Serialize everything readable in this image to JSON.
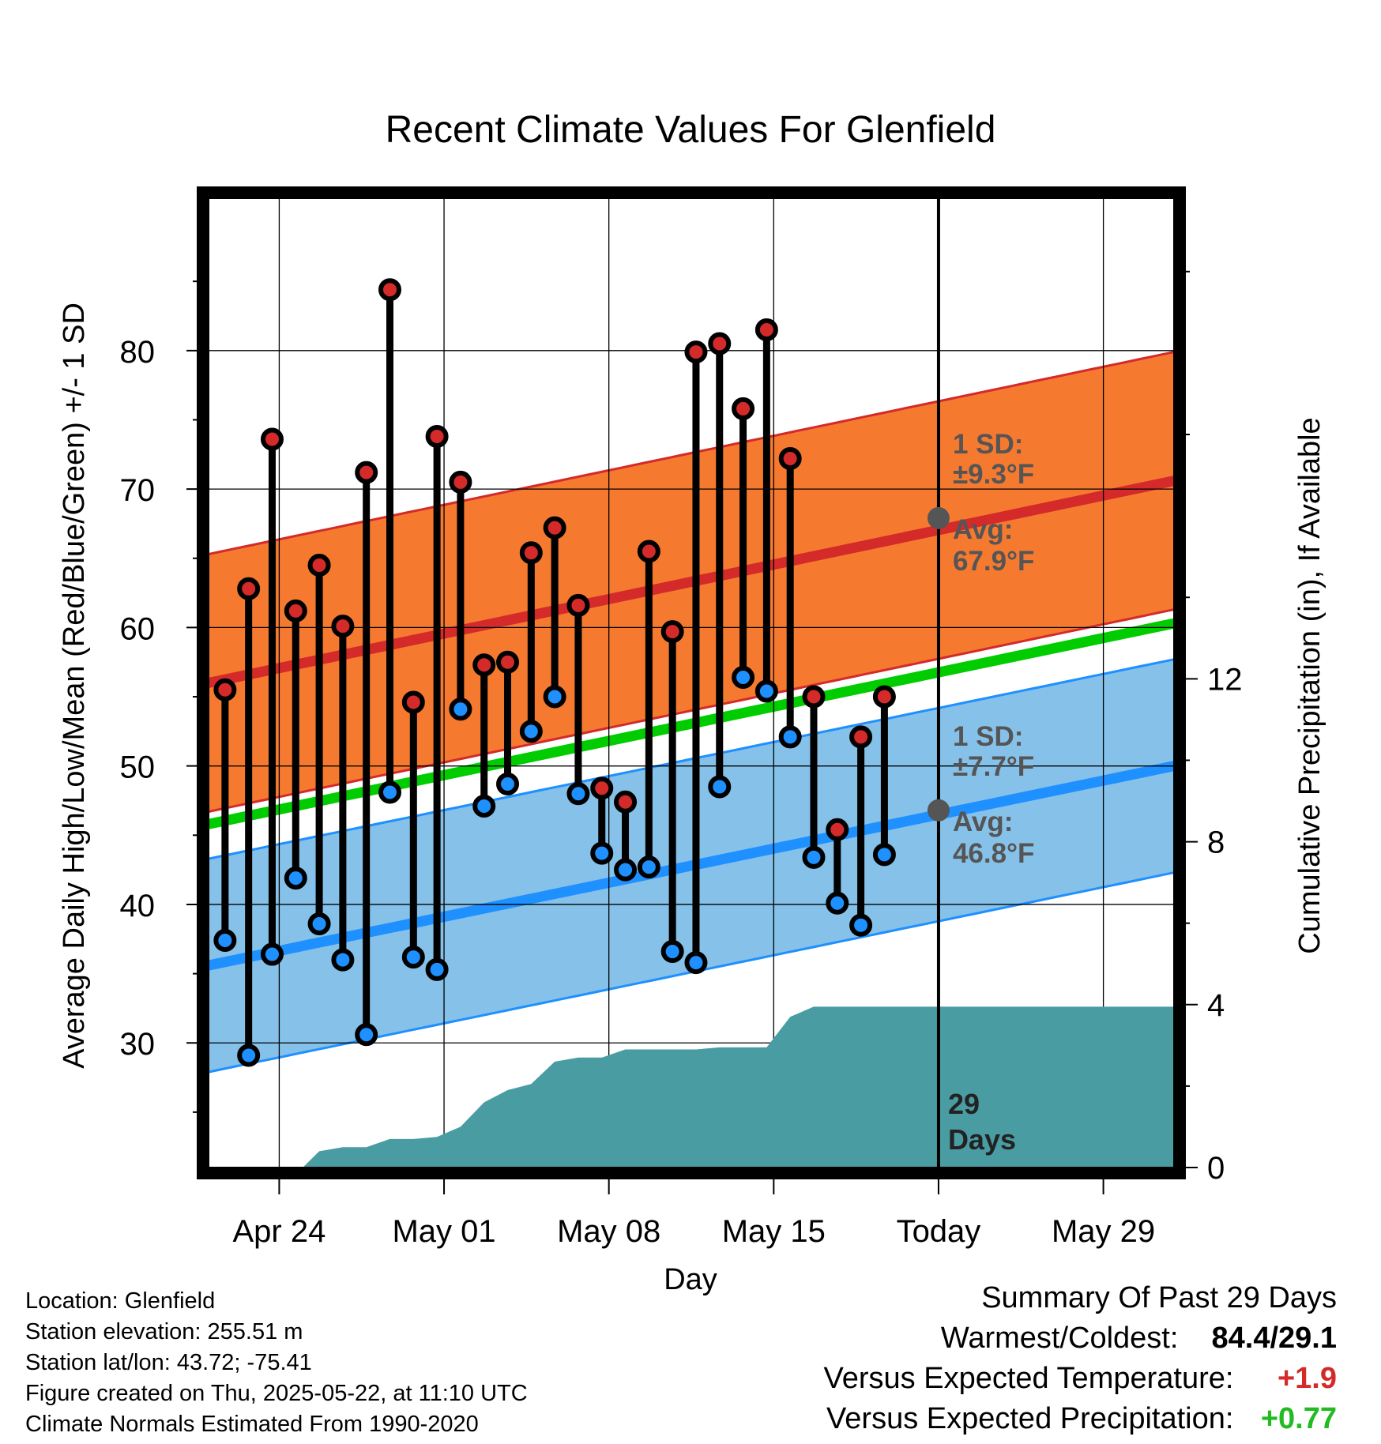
{
  "chart_data": {
    "type": "line",
    "title": "Recent Climate Values For Glenfield",
    "xlabel": "Day",
    "ylabel": "Average Daily High/Low/Mean (Red/Blue/Green) +/- 1 SD",
    "y2label": "Cumulative Precipitation (in), If Available",
    "x_ticks": [
      {
        "label": "Apr 24",
        "day": 3
      },
      {
        "label": "May 01",
        "day": 10
      },
      {
        "label": "May 08",
        "day": 17
      },
      {
        "label": "May 15",
        "day": 24
      },
      {
        "label": "Today",
        "day": 31
      },
      {
        "label": "May 29",
        "day": 38
      }
    ],
    "x_range_days": [
      0,
      41
    ],
    "ylim": [
      21,
      91
    ],
    "yticks": [
      30,
      40,
      50,
      60,
      70,
      80
    ],
    "y2lim": [
      0,
      23.8
    ],
    "y2ticks": [
      0,
      4,
      8,
      12
    ],
    "grid": true,
    "today_day": 31,
    "today_text": [
      "29",
      "Days"
    ],
    "daily_high_f": [
      55.5,
      62.8,
      73.6,
      61.2,
      64.5,
      60.1,
      71.2,
      84.4,
      54.6,
      73.8,
      70.5,
      57.3,
      57.5,
      65.4,
      67.2,
      61.6,
      48.4,
      47.4,
      65.5,
      59.7,
      79.9,
      80.5,
      75.8,
      81.5,
      72.2,
      55.0,
      45.4,
      52.1,
      55.0
    ],
    "daily_low_f": [
      37.4,
      29.1,
      36.4,
      41.9,
      38.6,
      36.0,
      30.6,
      48.1,
      36.2,
      35.3,
      54.1,
      47.1,
      48.7,
      52.5,
      55.0,
      48.0,
      43.7,
      42.5,
      42.7,
      36.6,
      35.8,
      48.5,
      56.4,
      55.4,
      52.1,
      43.4,
      40.1,
      38.5,
      43.6
    ],
    "first_obs_day": 0.7,
    "normals": {
      "high_avg": {
        "start": 56.0,
        "end": 70.6
      },
      "high_sd": 9.3,
      "low_avg": {
        "start": 35.6,
        "end": 50.0
      },
      "low_sd": 7.7,
      "mean_avg": {
        "start": 45.8,
        "end": 60.3
      }
    },
    "high_label": {
      "line1": "1 SD:",
      "line2": "±9.3°F",
      "line3": "Avg:",
      "line4": "67.9°F",
      "avg_at_today": 67.9
    },
    "low_label": {
      "line1": "1 SD:",
      "line2": "±7.7°F",
      "line3": "Avg:",
      "line4": "46.8°F",
      "avg_at_today": 46.8
    },
    "cumulative_precip_in": [
      [
        0.0,
        0.0
      ],
      [
        4.0,
        0.0
      ],
      [
        4.7,
        0.4
      ],
      [
        5.7,
        0.5
      ],
      [
        6.7,
        0.5
      ],
      [
        7.7,
        0.7
      ],
      [
        8.7,
        0.7
      ],
      [
        9.7,
        0.75
      ],
      [
        10.7,
        1.0
      ],
      [
        11.7,
        1.6
      ],
      [
        12.7,
        1.9
      ],
      [
        13.7,
        2.05
      ],
      [
        14.7,
        2.6
      ],
      [
        15.7,
        2.7
      ],
      [
        16.7,
        2.7
      ],
      [
        17.7,
        2.9
      ],
      [
        18.7,
        2.9
      ],
      [
        19.7,
        2.9
      ],
      [
        20.7,
        2.9
      ],
      [
        21.7,
        2.95
      ],
      [
        22.7,
        2.95
      ],
      [
        23.7,
        2.95
      ],
      [
        24.7,
        3.7
      ],
      [
        25.7,
        3.95
      ],
      [
        26.7,
        3.95
      ],
      [
        41.0,
        3.95
      ]
    ],
    "colors": {
      "high": "#d42a2a",
      "high_band": "#f57a30",
      "low": "#1e90ff",
      "low_band": "#85c1e8",
      "mean": "#00cc00",
      "precip": "#4a9ca3",
      "marker_avg": "#555555"
    }
  },
  "footer": {
    "location": "Location: Glenfield",
    "elevation": "Station elevation: 255.51 m",
    "latlon": "Station lat/lon: 43.72; -75.41",
    "created": "Figure created on Thu, 2025-05-22, at 11:10 UTC",
    "normals": "Climate Normals Estimated From 1990-2020"
  },
  "summary": {
    "title": "Summary Of Past 29 Days",
    "warmest_label": "Warmest/Coldest:",
    "warmest_value": "84.4/29.1",
    "temp_label": "Versus Expected Temperature:",
    "temp_value": "+1.9",
    "temp_color": "#d42a2a",
    "precip_label": "Versus Expected Precipitation:",
    "precip_value": "+0.77",
    "precip_color": "#22bb22"
  }
}
